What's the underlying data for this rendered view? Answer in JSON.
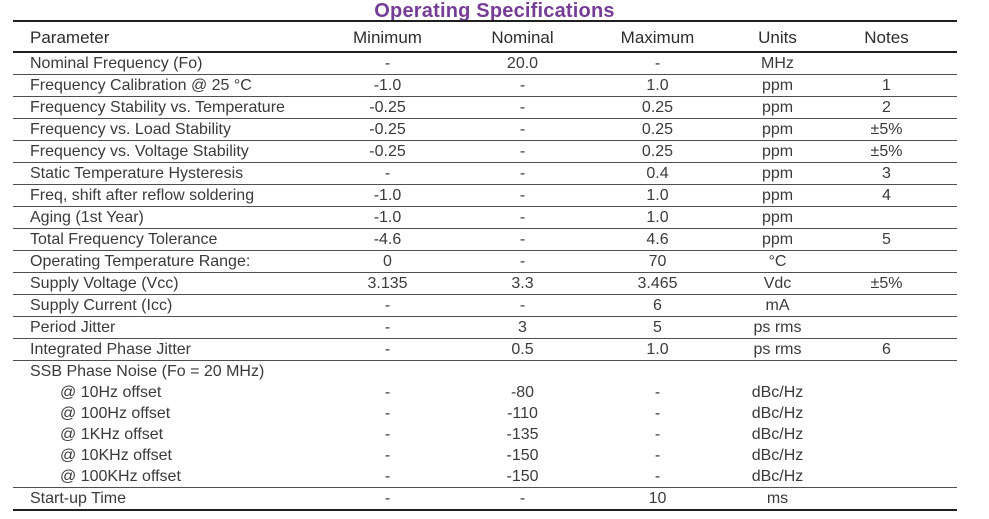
{
  "title": "Operating Specifications",
  "title_color": "#763D97",
  "text_color": "#3a3a3a",
  "table": {
    "headers": [
      "Parameter",
      "Minimum",
      "Nominal",
      "Maximum",
      "Units",
      "Notes"
    ],
    "rows": [
      {
        "parameter": "Nominal Frequency (Fo)",
        "minimum": "-",
        "nominal": "20.0",
        "maximum": "-",
        "units": "MHz",
        "notes": ""
      },
      {
        "parameter": "Frequency Calibration @ 25 °C",
        "minimum": "-1.0",
        "nominal": "-",
        "maximum": "1.0",
        "units": "ppm",
        "notes": "1"
      },
      {
        "parameter": "Frequency Stability vs. Temperature",
        "minimum": "-0.25",
        "nominal": "-",
        "maximum": "0.25",
        "units": "ppm",
        "notes": "2"
      },
      {
        "parameter": "Frequency vs. Load Stability",
        "minimum": "-0.25",
        "nominal": "-",
        "maximum": "0.25",
        "units": "ppm",
        "notes": "±5%"
      },
      {
        "parameter": "Frequency vs. Voltage Stability",
        "minimum": "-0.25",
        "nominal": "-",
        "maximum": "0.25",
        "units": "ppm",
        "notes": "±5%"
      },
      {
        "parameter": "Static Temperature Hysteresis",
        "minimum": "-",
        "nominal": "-",
        "maximum": "0.4",
        "units": "ppm",
        "notes": "3"
      },
      {
        "parameter": "Freq, shift after reflow soldering",
        "minimum": "-1.0",
        "nominal": "-",
        "maximum": "1.0",
        "units": "ppm",
        "notes": "4"
      },
      {
        "parameter": "Aging (1st Year)",
        "minimum": "-1.0",
        "nominal": "-",
        "maximum": "1.0",
        "units": "ppm",
        "notes": ""
      },
      {
        "parameter": "Total Frequency Tolerance",
        "minimum": "-4.6",
        "nominal": "-",
        "maximum": "4.6",
        "units": "ppm",
        "notes": "5"
      },
      {
        "parameter": "Operating Temperature Range:",
        "minimum": "0",
        "nominal": "-",
        "maximum": "70",
        "units": "°C",
        "notes": ""
      },
      {
        "parameter": "Supply Voltage (Vcc)",
        "minimum": "3.135",
        "nominal": "3.3",
        "maximum": "3.465",
        "units": "Vdc",
        "notes": "±5%"
      },
      {
        "parameter": "Supply Current (Icc)",
        "minimum": "-",
        "nominal": "-",
        "maximum": "6",
        "units": "mA",
        "notes": ""
      },
      {
        "parameter": "Period Jitter",
        "minimum": "-",
        "nominal": "3",
        "maximum": "5",
        "units": "ps rms",
        "notes": ""
      },
      {
        "parameter": "Integrated Phase Jitter",
        "minimum": "-",
        "nominal": "0.5",
        "maximum": "1.0",
        "units": "ps rms",
        "notes": "6"
      },
      {
        "parameter": "SSB Phase Noise (Fo = 20 MHz)",
        "minimum": "",
        "nominal": "",
        "maximum": "",
        "units": "",
        "notes": "",
        "section": true,
        "no_separator": true
      },
      {
        "parameter": "@ 10Hz offset",
        "minimum": "-",
        "nominal": "-80",
        "maximum": "-",
        "units": "dBc/Hz",
        "notes": "",
        "indent": true,
        "no_separator": true
      },
      {
        "parameter": "@ 100Hz offset",
        "minimum": "-",
        "nominal": "-110",
        "maximum": "-",
        "units": "dBc/Hz",
        "notes": "",
        "indent": true,
        "no_separator": true
      },
      {
        "parameter": "@ 1KHz offset",
        "minimum": "-",
        "nominal": "-135",
        "maximum": "-",
        "units": "dBc/Hz",
        "notes": "",
        "indent": true,
        "no_separator": true
      },
      {
        "parameter": "@ 10KHz offset",
        "minimum": "-",
        "nominal": "-150",
        "maximum": "-",
        "units": "dBc/Hz",
        "notes": "",
        "indent": true,
        "no_separator": true
      },
      {
        "parameter": "@ 100KHz offset",
        "minimum": "-",
        "nominal": "-150",
        "maximum": "-",
        "units": "dBc/Hz",
        "notes": "",
        "indent": true
      },
      {
        "parameter": "Start-up Time",
        "minimum": "-",
        "nominal": "-",
        "maximum": "10",
        "units": "ms",
        "notes": ""
      }
    ]
  }
}
